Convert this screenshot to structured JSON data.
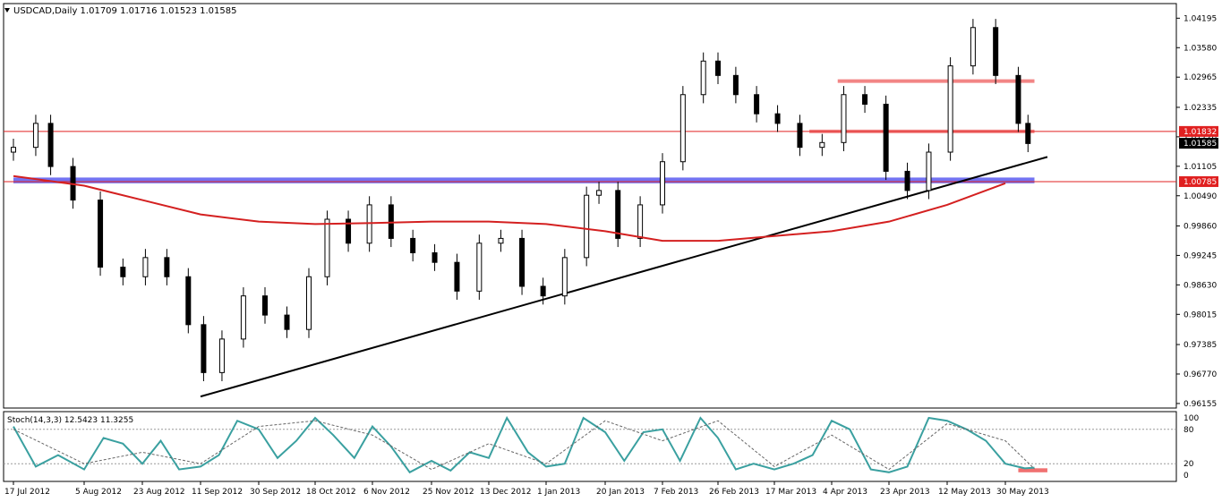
{
  "chart_data": [
    {
      "type": "candlestick",
      "symbol_header": "USDCAD,Daily  1.01709 1.01716 1.01523 1.01585",
      "ylim": [
        0.9606,
        1.045
      ],
      "y_ticks": [
        "1.04195",
        "1.03580",
        "1.02965",
        "1.02335",
        "1.01720",
        "1.01105",
        "1.00490",
        "0.99860",
        "0.99245",
        "0.98630",
        "0.98015",
        "0.97385",
        "0.96770",
        "0.96155"
      ],
      "x_ticks": [
        "17 Jul 2012",
        "5 Aug 2012",
        "23 Aug 2012",
        "11 Sep 2012",
        "30 Sep 2012",
        "18 Oct 2012",
        "6 Nov 2012",
        "25 Nov 2012",
        "13 Dec 2012",
        "1 Jan 2013",
        "20 Jan 2013",
        "7 Feb 2013",
        "26 Feb 2013",
        "17 Mar 2013",
        "4 Apr 2013",
        "23 Apr 2013",
        "12 May 2013",
        "30 May 2013"
      ],
      "price_labels": [
        {
          "text": "1.01832",
          "value": 1.01832,
          "bg": "#e02020"
        },
        {
          "text": "1.01585",
          "value": 1.01585,
          "bg": "#000000"
        },
        {
          "text": "1.00785",
          "value": 1.00785,
          "bg": "#e02020"
        }
      ],
      "series": [
        {
          "name": "close",
          "x": [
            "17 Jul 2012",
            "23 Jul 2012",
            "27 Jul 2012",
            "2 Aug 2012",
            "10 Aug 2012",
            "17 Aug 2012",
            "24 Aug 2012",
            "31 Aug 2012",
            "7 Sep 2012",
            "12 Sep 2012",
            "18 Sep 2012",
            "25 Sep 2012",
            "2 Oct 2012",
            "9 Oct 2012",
            "16 Oct 2012",
            "22 Oct 2012",
            "29 Oct 2012",
            "5 Nov 2012",
            "12 Nov 2012",
            "19 Nov 2012",
            "26 Nov 2012",
            "3 Dec 2012",
            "10 Dec 2012",
            "17 Dec 2012",
            "24 Dec 2012",
            "31 Dec 2012",
            "7 Jan 2013",
            "14 Jan 2013",
            "18 Jan 2013",
            "24 Jan 2013",
            "31 Jan 2013",
            "7 Feb 2013",
            "14 Feb 2013",
            "21 Feb 2013",
            "26 Feb 2013",
            "4 Mar 2013",
            "11 Mar 2013",
            "18 Mar 2013",
            "25 Mar 2013",
            "1 Apr 2013",
            "8 Apr 2013",
            "15 Apr 2013",
            "22 Apr 2013",
            "29 Apr 2013",
            "6 May 2013",
            "13 May 2013",
            "20 May 2013",
            "27 May 2013",
            "3 Jun 2013",
            "6 Jun 2013"
          ],
          "values": [
            1.015,
            1.02,
            1.011,
            1.004,
            0.99,
            0.988,
            0.992,
            0.988,
            0.978,
            0.968,
            0.975,
            0.984,
            0.98,
            0.977,
            0.988,
            1.0,
            0.995,
            1.003,
            0.996,
            0.993,
            0.991,
            0.985,
            0.995,
            0.996,
            0.986,
            0.984,
            0.992,
            1.005,
            1.006,
            0.996,
            1.003,
            1.012,
            1.026,
            1.033,
            1.03,
            1.026,
            1.022,
            1.02,
            1.015,
            1.016,
            1.026,
            1.024,
            1.01,
            1.006,
            1.014,
            1.032,
            1.04,
            1.03,
            1.02,
            1.0158
          ]
        },
        {
          "name": "moving-average",
          "x": [
            "17 Jul 2012",
            "5 Aug 2012",
            "23 Aug 2012",
            "11 Sep 2012",
            "30 Sep 2012",
            "18 Oct 2012",
            "6 Nov 2012",
            "25 Nov 2012",
            "13 Dec 2012",
            "1 Jan 2013",
            "20 Jan 2013",
            "7 Feb 2013",
            "26 Feb 2013",
            "17 Mar 2013",
            "4 Apr 2013",
            "23 Apr 2013",
            "12 May 2013",
            "30 May 2013"
          ],
          "values": [
            1.009,
            1.007,
            1.004,
            1.001,
            0.9995,
            0.999,
            0.9992,
            0.9995,
            0.9995,
            0.999,
            0.9975,
            0.9955,
            0.9955,
            0.9965,
            0.9975,
            0.9995,
            1.003,
            1.0075
          ]
        }
      ],
      "trendline": {
        "x": [
          "11 Sep 2012",
          "12 Jun 2013"
        ],
        "values": [
          0.963,
          1.013
        ],
        "color": "#000000"
      },
      "zones": [
        {
          "value_low": 1.0075,
          "value_high": 1.0087,
          "x_start": "17 Jul 2012",
          "x_end": "8 Jun 2013",
          "color": "#5a5af0"
        },
        {
          "value_low": 1.018,
          "value_high": 1.0187,
          "x_start": "28 Mar 2013",
          "x_end": "8 Jun 2013",
          "color": "#f07070"
        },
        {
          "value_low": 1.0285,
          "value_high": 1.0292,
          "x_start": "6 Apr 2013",
          "x_end": "8 Jun 2013",
          "color": "#f07070"
        }
      ],
      "hlines": [
        {
          "value": 1.01832,
          "color": "#e02020"
        },
        {
          "value": 1.00785,
          "color": "#e02020"
        }
      ],
      "up_color": "#ffffff",
      "down_color": "#000000",
      "ma_color": "#d42020",
      "grid": false
    },
    {
      "type": "line",
      "title": "Stoch(14,3,3) 12.5423 11.3255",
      "ylim": [
        0,
        100
      ],
      "y_ticks": [
        "100",
        "80",
        "20",
        "0"
      ],
      "levels": [
        80,
        20
      ],
      "series": [
        {
          "name": "main",
          "color": "#3aa0a0",
          "x": [
            "17 Jul 2012",
            "23 Jul 2012",
            "29 Jul 2012",
            "5 Aug 2012",
            "11 Aug 2012",
            "17 Aug 2012",
            "23 Aug 2012",
            "29 Aug 2012",
            "4 Sep 2012",
            "11 Sep 2012",
            "17 Sep 2012",
            "23 Sep 2012",
            "30 Sep 2012",
            "6 Oct 2012",
            "12 Oct 2012",
            "18 Oct 2012",
            "24 Oct 2012",
            "31 Oct 2012",
            "6 Nov 2012",
            "12 Nov 2012",
            "18 Nov 2012",
            "25 Nov 2012",
            "1 Dec 2012",
            "7 Dec 2012",
            "13 Dec 2012",
            "19 Dec 2012",
            "26 Dec 2012",
            "1 Jan 2013",
            "7 Jan 2013",
            "13 Jan 2013",
            "20 Jan 2013",
            "26 Jan 2013",
            "1 Feb 2013",
            "7 Feb 2013",
            "13 Feb 2013",
            "20 Feb 2013",
            "26 Feb 2013",
            "4 Mar 2013",
            "10 Mar 2013",
            "17 Mar 2013",
            "23 Mar 2013",
            "29 Mar 2013",
            "4 Apr 2013",
            "10 Apr 2013",
            "17 Apr 2013",
            "23 Apr 2013",
            "29 Apr 2013",
            "6 May 2013",
            "12 May 2013",
            "18 May 2013",
            "24 May 2013",
            "30 May 2013",
            "5 Jun 2013",
            "8 Jun 2013"
          ],
          "values": [
            85,
            15,
            35,
            10,
            65,
            55,
            20,
            60,
            10,
            15,
            35,
            95,
            80,
            30,
            60,
            100,
            70,
            30,
            85,
            50,
            5,
            25,
            8,
            40,
            30,
            100,
            40,
            15,
            20,
            100,
            75,
            25,
            75,
            80,
            25,
            100,
            65,
            10,
            20,
            10,
            20,
            35,
            95,
            80,
            10,
            5,
            15,
            100,
            95,
            80,
            60,
            20,
            12,
            13
          ]
        },
        {
          "name": "signal",
          "color": "#666666",
          "x": [
            "17 Jul 2012",
            "5 Aug 2012",
            "23 Aug 2012",
            "11 Sep 2012",
            "30 Sep 2012",
            "18 Oct 2012",
            "6 Nov 2012",
            "25 Nov 2012",
            "13 Dec 2012",
            "1 Jan 2013",
            "20 Jan 2013",
            "7 Feb 2013",
            "26 Feb 2013",
            "17 Mar 2013",
            "4 Apr 2013",
            "23 Apr 2013",
            "12 May 2013",
            "30 May 2013",
            "8 Jun 2013"
          ],
          "values": [
            80,
            20,
            40,
            20,
            85,
            95,
            70,
            10,
            55,
            20,
            95,
            60,
            95,
            15,
            70,
            10,
            90,
            60,
            11
          ]
        }
      ],
      "highlight": {
        "x_start": "3 Jun 2013",
        "x_end": "12 Jun 2013",
        "value_low": 5,
        "value_high": 12,
        "color": "#f07070"
      }
    }
  ]
}
